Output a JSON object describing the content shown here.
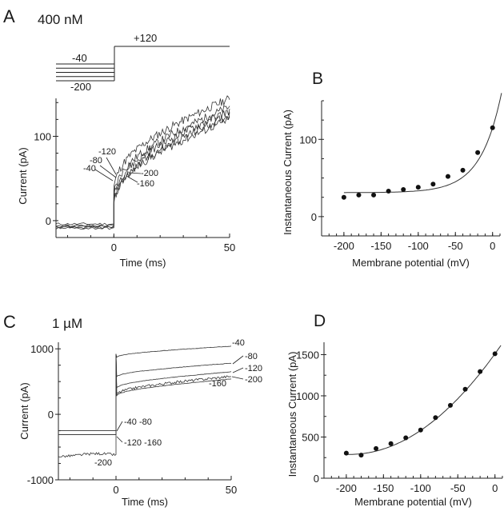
{
  "panels": {
    "A": {
      "letter": "A",
      "condition": "400 nM"
    },
    "B": {
      "letter": "B"
    },
    "C": {
      "letter": "C",
      "condition": "1 µM"
    },
    "D": {
      "letter": "D"
    }
  },
  "protocol": {
    "holding_top_label": "-40",
    "holding_bottom_label": "-200",
    "step_label": "+120",
    "holding_levels_mV": [
      -40,
      -80,
      -120,
      -160,
      -200
    ],
    "step_mV": 120
  },
  "chart_data": [
    {
      "id": "A",
      "type": "line",
      "title": "400 nM",
      "xlabel": "Time (ms)",
      "ylabel": "Current (pA)",
      "xlim": [
        -25,
        50
      ],
      "ylim": [
        -20,
        145
      ],
      "xticks": [
        0,
        50
      ],
      "yticks": [
        0,
        100
      ],
      "series": [
        {
          "name": "-40",
          "pre": -4,
          "start": 40,
          "end": 145
        },
        {
          "name": "-80",
          "pre": -6,
          "start": 32,
          "end": 135
        },
        {
          "name": "-120",
          "pre": -7,
          "start": 28,
          "end": 130
        },
        {
          "name": "-160",
          "pre": -8,
          "start": 22,
          "end": 120
        },
        {
          "name": "-200",
          "pre": -9,
          "start": 20,
          "end": 125
        }
      ],
      "annotations": [
        "-120",
        "-80",
        "-40",
        "-200",
        "-160"
      ]
    },
    {
      "id": "B",
      "type": "scatter",
      "xlabel": "Membrane potential (mV)",
      "ylabel": "Instantaneous Current (pA)",
      "xlim": [
        -230,
        10
      ],
      "ylim": [
        -25,
        150
      ],
      "xticks": [
        -200,
        -150,
        -100,
        -50,
        0
      ],
      "yticks": [
        0,
        100
      ],
      "x": [
        -200,
        -180,
        -160,
        -140,
        -120,
        -100,
        -80,
        -60,
        -40,
        -20,
        0
      ],
      "y": [
        25,
        28,
        28,
        33,
        35,
        38,
        42,
        52,
        60,
        83,
        115
      ],
      "fit": {
        "type": "exponential",
        "x_range": [
          -200,
          5
        ]
      }
    },
    {
      "id": "C",
      "type": "line",
      "title": "1 µM",
      "xlabel": "Time (ms)",
      "ylabel": "Current (pA)",
      "xlim": [
        -25,
        50
      ],
      "ylim": [
        -1000,
        1100
      ],
      "xticks": [
        0,
        50
      ],
      "yticks": [
        -1000,
        0,
        1000
      ],
      "series": [
        {
          "name": "-40",
          "pre": -250,
          "start": 870,
          "end": 1040
        },
        {
          "name": "-80",
          "pre": -250,
          "start": 570,
          "end": 780
        },
        {
          "name": "-120",
          "pre": -310,
          "start": 400,
          "end": 650
        },
        {
          "name": "-160",
          "pre": -310,
          "start": 280,
          "end": 540
        },
        {
          "name": "-200",
          "pre": -620,
          "start": 300,
          "end": 580
        }
      ],
      "annotations": [
        "-40",
        "-80",
        "-120",
        "-200",
        "-160",
        "-40  -80",
        "-120  -160",
        "-200"
      ]
    },
    {
      "id": "D",
      "type": "scatter",
      "xlabel": "Membrane potential (mV)",
      "ylabel": "Instantaneous Current (pA)",
      "xlim": [
        -230,
        10
      ],
      "ylim": [
        0,
        1650
      ],
      "xticks": [
        -200,
        -150,
        -100,
        -50,
        0
      ],
      "yticks": [
        0,
        500,
        1000,
        1500
      ],
      "x": [
        -200,
        -180,
        -160,
        -140,
        -120,
        -100,
        -80,
        -60,
        -40,
        -20,
        0
      ],
      "y": [
        305,
        280,
        360,
        420,
        490,
        585,
        735,
        885,
        1080,
        1295,
        1510
      ],
      "fit": {
        "type": "polynomial",
        "x_range": [
          -200,
          8
        ]
      }
    }
  ]
}
